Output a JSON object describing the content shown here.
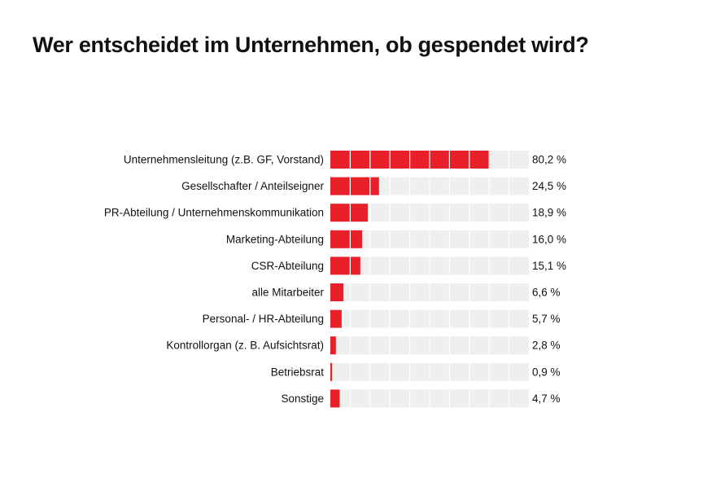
{
  "title": "Wer entscheidet im Unternehmen, ob gespendet wird?",
  "colors": {
    "bar": "#e8202a",
    "track": "#efefef",
    "segment_divider": "#ffffff",
    "text": "#111111"
  },
  "chart_data": {
    "type": "bar",
    "orientation": "horizontal",
    "title": "Wer entscheidet im Unternehmen, ob gespendet wird?",
    "unit": "%",
    "xlim": [
      0,
      100
    ],
    "grid": false,
    "legend": "none",
    "categories": [
      "Unternehmensleitung (z.B. GF, Vorstand)",
      "Gesellschafter / Anteilseigner",
      "PR-Abteilung / Unternehmenskommunikation",
      "Marketing-Abteilung",
      "CSR-Abteilung",
      "alle Mitarbeiter",
      "Personal- / HR-Abteilung",
      "Kontrollorgan (z. B. Aufsichtsrat)",
      "Betriebsrat",
      "Sonstige"
    ],
    "values": [
      80.2,
      24.5,
      18.9,
      16.0,
      15.1,
      6.6,
      5.7,
      2.8,
      0.9,
      4.7
    ],
    "value_labels": [
      "80,2 %",
      "24,5 %",
      "18,9 %",
      "16,0 %",
      "15,1 %",
      "6,6 %",
      "5,7 %",
      "2,8 %",
      "0,9 %",
      "4,7 %"
    ]
  }
}
